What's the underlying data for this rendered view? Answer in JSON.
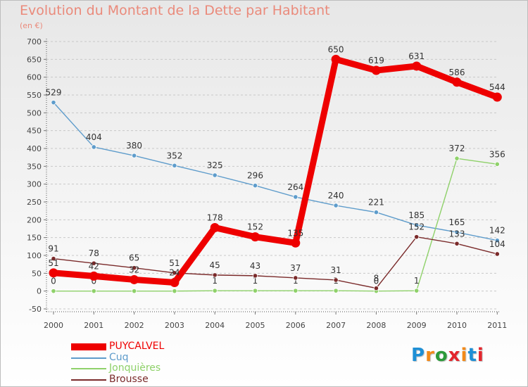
{
  "title": "Evolution du Montant de la Dette par Habitant",
  "unit": "(en €)",
  "brand": {
    "text": "Proxiti",
    "letter_colors": [
      "#1e8fd5",
      "#f28a1a",
      "#2d9a3a",
      "#e3262d",
      "#f28a1a",
      "#1e8fd5",
      "#e3262d"
    ]
  },
  "chart_data": {
    "type": "line",
    "title": "Evolution du Montant de la Dette par Habitant",
    "subtitle": "(en €)",
    "xlabel": "",
    "ylabel": "",
    "categories": [
      "2000",
      "2001",
      "2002",
      "2003",
      "2004",
      "2005",
      "2006",
      "2007",
      "2008",
      "2009",
      "2010",
      "2011"
    ],
    "y_ticks": [
      "-50",
      "0",
      "50",
      "100",
      "150",
      "200",
      "250",
      "300",
      "350",
      "400",
      "450",
      "500",
      "550",
      "600",
      "650",
      "700"
    ],
    "ylim": [
      -50,
      700
    ],
    "grid": "horizontal-dashed",
    "legend_position": "bottom-left",
    "series": [
      {
        "name": "PUYCALVEL",
        "color": "#ee0000",
        "emphasis": "thick",
        "values": [
          51,
          42,
          32,
          24,
          178,
          152,
          135,
          650,
          619,
          631,
          586,
          544
        ],
        "labels": [
          "51",
          "42",
          "32",
          "24",
          "178",
          "152",
          "135",
          "650",
          "619",
          "631",
          "586",
          "544"
        ]
      },
      {
        "name": "Cuq",
        "color": "#5e9ccb",
        "emphasis": "thin",
        "values": [
          529,
          404,
          380,
          352,
          325,
          296,
          264,
          240,
          221,
          185,
          165,
          142
        ],
        "labels": [
          "529",
          "404",
          "380",
          "352",
          "325",
          "296",
          "264",
          "240",
          "221",
          "185",
          "165",
          "142"
        ]
      },
      {
        "name": "Jonquières",
        "color": "#8fd16a",
        "emphasis": "thin",
        "values": [
          0,
          0,
          0,
          0,
          1,
          1,
          1,
          1,
          0,
          1,
          372,
          356
        ],
        "labels": [
          "0",
          "0",
          "0",
          "0",
          "1",
          "1",
          "1",
          "1",
          "0",
          "1",
          "372",
          "356"
        ]
      },
      {
        "name": "Brousse",
        "color": "#7a2a2a",
        "emphasis": "thin",
        "values": [
          91,
          78,
          65,
          51,
          45,
          43,
          37,
          31,
          8,
          152,
          133,
          104
        ],
        "labels": [
          "91",
          "78",
          "65",
          "51",
          "45",
          "43",
          "37",
          "31",
          "8",
          "152",
          "133",
          "104"
        ]
      }
    ]
  }
}
